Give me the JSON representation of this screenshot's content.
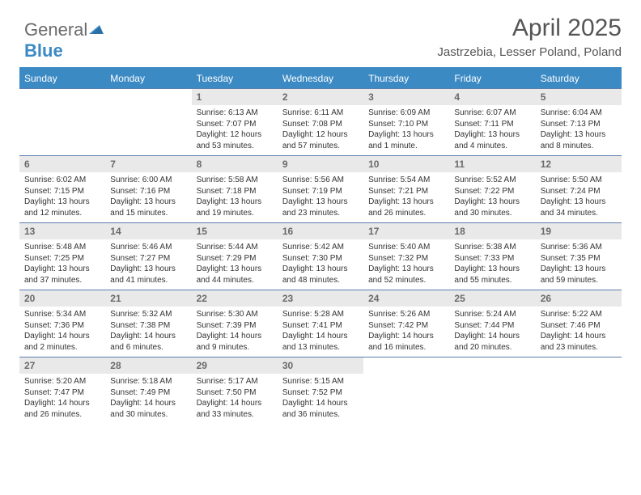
{
  "logo": {
    "part1": "General",
    "part2": "Blue"
  },
  "title": "April 2025",
  "subtitle": "Jastrzebia, Lesser Poland, Poland",
  "colors": {
    "header_bar": "#3b8ac4",
    "header_text": "#ffffff",
    "week_border": "#5a7faf",
    "daynum_bg": "#e9e9e9",
    "daynum_fg": "#6a6a6a",
    "body_text": "#333333",
    "title_fg": "#555555",
    "logo_gray": "#6a6a6a",
    "logo_blue": "#3b8ac4"
  },
  "typography": {
    "title_fontsize": 30,
    "subtitle_fontsize": 15,
    "dayhead_fontsize": 12,
    "daynum_fontsize": 12,
    "cell_fontsize": 10
  },
  "day_names": [
    "Sunday",
    "Monday",
    "Tuesday",
    "Wednesday",
    "Thursday",
    "Friday",
    "Saturday"
  ],
  "weeks": [
    [
      {
        "day": "",
        "sunrise": "",
        "sunset": "",
        "daylight": ""
      },
      {
        "day": "",
        "sunrise": "",
        "sunset": "",
        "daylight": ""
      },
      {
        "day": "1",
        "sunrise": "6:13 AM",
        "sunset": "7:07 PM",
        "daylight": "12 hours and 53 minutes."
      },
      {
        "day": "2",
        "sunrise": "6:11 AM",
        "sunset": "7:08 PM",
        "daylight": "12 hours and 57 minutes."
      },
      {
        "day": "3",
        "sunrise": "6:09 AM",
        "sunset": "7:10 PM",
        "daylight": "13 hours and 1 minute."
      },
      {
        "day": "4",
        "sunrise": "6:07 AM",
        "sunset": "7:11 PM",
        "daylight": "13 hours and 4 minutes."
      },
      {
        "day": "5",
        "sunrise": "6:04 AM",
        "sunset": "7:13 PM",
        "daylight": "13 hours and 8 minutes."
      }
    ],
    [
      {
        "day": "6",
        "sunrise": "6:02 AM",
        "sunset": "7:15 PM",
        "daylight": "13 hours and 12 minutes."
      },
      {
        "day": "7",
        "sunrise": "6:00 AM",
        "sunset": "7:16 PM",
        "daylight": "13 hours and 15 minutes."
      },
      {
        "day": "8",
        "sunrise": "5:58 AM",
        "sunset": "7:18 PM",
        "daylight": "13 hours and 19 minutes."
      },
      {
        "day": "9",
        "sunrise": "5:56 AM",
        "sunset": "7:19 PM",
        "daylight": "13 hours and 23 minutes."
      },
      {
        "day": "10",
        "sunrise": "5:54 AM",
        "sunset": "7:21 PM",
        "daylight": "13 hours and 26 minutes."
      },
      {
        "day": "11",
        "sunrise": "5:52 AM",
        "sunset": "7:22 PM",
        "daylight": "13 hours and 30 minutes."
      },
      {
        "day": "12",
        "sunrise": "5:50 AM",
        "sunset": "7:24 PM",
        "daylight": "13 hours and 34 minutes."
      }
    ],
    [
      {
        "day": "13",
        "sunrise": "5:48 AM",
        "sunset": "7:25 PM",
        "daylight": "13 hours and 37 minutes."
      },
      {
        "day": "14",
        "sunrise": "5:46 AM",
        "sunset": "7:27 PM",
        "daylight": "13 hours and 41 minutes."
      },
      {
        "day": "15",
        "sunrise": "5:44 AM",
        "sunset": "7:29 PM",
        "daylight": "13 hours and 44 minutes."
      },
      {
        "day": "16",
        "sunrise": "5:42 AM",
        "sunset": "7:30 PM",
        "daylight": "13 hours and 48 minutes."
      },
      {
        "day": "17",
        "sunrise": "5:40 AM",
        "sunset": "7:32 PM",
        "daylight": "13 hours and 52 minutes."
      },
      {
        "day": "18",
        "sunrise": "5:38 AM",
        "sunset": "7:33 PM",
        "daylight": "13 hours and 55 minutes."
      },
      {
        "day": "19",
        "sunrise": "5:36 AM",
        "sunset": "7:35 PM",
        "daylight": "13 hours and 59 minutes."
      }
    ],
    [
      {
        "day": "20",
        "sunrise": "5:34 AM",
        "sunset": "7:36 PM",
        "daylight": "14 hours and 2 minutes."
      },
      {
        "day": "21",
        "sunrise": "5:32 AM",
        "sunset": "7:38 PM",
        "daylight": "14 hours and 6 minutes."
      },
      {
        "day": "22",
        "sunrise": "5:30 AM",
        "sunset": "7:39 PM",
        "daylight": "14 hours and 9 minutes."
      },
      {
        "day": "23",
        "sunrise": "5:28 AM",
        "sunset": "7:41 PM",
        "daylight": "14 hours and 13 minutes."
      },
      {
        "day": "24",
        "sunrise": "5:26 AM",
        "sunset": "7:42 PM",
        "daylight": "14 hours and 16 minutes."
      },
      {
        "day": "25",
        "sunrise": "5:24 AM",
        "sunset": "7:44 PM",
        "daylight": "14 hours and 20 minutes."
      },
      {
        "day": "26",
        "sunrise": "5:22 AM",
        "sunset": "7:46 PM",
        "daylight": "14 hours and 23 minutes."
      }
    ],
    [
      {
        "day": "27",
        "sunrise": "5:20 AM",
        "sunset": "7:47 PM",
        "daylight": "14 hours and 26 minutes."
      },
      {
        "day": "28",
        "sunrise": "5:18 AM",
        "sunset": "7:49 PM",
        "daylight": "14 hours and 30 minutes."
      },
      {
        "day": "29",
        "sunrise": "5:17 AM",
        "sunset": "7:50 PM",
        "daylight": "14 hours and 33 minutes."
      },
      {
        "day": "30",
        "sunrise": "5:15 AM",
        "sunset": "7:52 PM",
        "daylight": "14 hours and 36 minutes."
      },
      {
        "day": "",
        "sunrise": "",
        "sunset": "",
        "daylight": ""
      },
      {
        "day": "",
        "sunrise": "",
        "sunset": "",
        "daylight": ""
      },
      {
        "day": "",
        "sunrise": "",
        "sunset": "",
        "daylight": ""
      }
    ]
  ],
  "labels": {
    "sunrise": "Sunrise:",
    "sunset": "Sunset:",
    "daylight": "Daylight:"
  }
}
